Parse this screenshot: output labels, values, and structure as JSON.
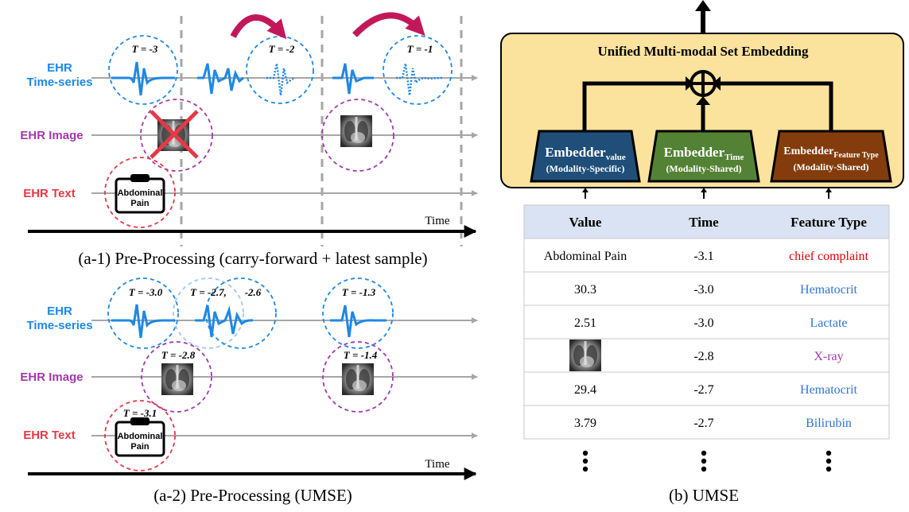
{
  "colors": {
    "timeseries": "#1e88e5",
    "image": "#a03aa8",
    "text": "#e53945",
    "axis": "#000000",
    "guide": "#a6a6a6",
    "carry_arrow": "#c2185b",
    "umse_box": "#fbe39e",
    "emb_value": "#1f4e79",
    "emb_time": "#548235",
    "emb_feature": "#843c0c",
    "table_header": "#dae3f3",
    "feature_red": "#e00000",
    "feature_blue": "#2e75d2",
    "feature_purple": "#a03aa8"
  },
  "icons": [
    "ecg-waveform-icon",
    "chest-xray-icon",
    "clipboard-icon",
    "cross-out-icon",
    "curved-arrow-icon",
    "circled-plus-icon",
    "up-arrow-icon",
    "vertical-ellipsis-icon"
  ],
  "panel_a1": {
    "row_labels": {
      "timeseries_line1": "EHR",
      "timeseries_line2": "Time-series",
      "image": "EHR Image",
      "text": "EHR Text"
    },
    "t_labels": [
      "T = -3",
      "T = -2",
      "T = -1"
    ],
    "clipboard_line1": "Abdominal",
    "clipboard_line2": "Pain",
    "time_label": "Time",
    "caption": "(a-1) Pre-Processing (carry-forward + latest sample)"
  },
  "panel_a2": {
    "row_labels": {
      "timeseries_line1": "EHR",
      "timeseries_line2": "Time-series",
      "image": "EHR Image",
      "text": "EHR Text"
    },
    "t_labels_ts": [
      "T = -3.0",
      "T = -2.7,",
      "-2.6",
      "T = -1.3"
    ],
    "t_labels_img": [
      "T = -2.8",
      "T = -1.4"
    ],
    "t_label_text": "T = -3.1",
    "clipboard_line1": "Abdominal",
    "clipboard_line2": "Pain",
    "time_label": "Time",
    "caption": "(a-2) Pre-Processing (UMSE)"
  },
  "panel_b": {
    "title": "Unified Multi-modal Set Embedding",
    "embedders": [
      {
        "main": "Embedder",
        "sub": "value",
        "note": "(Modality-Specific)"
      },
      {
        "main": "Embedder",
        "sub": "Time",
        "note": "(Modality-Shared)"
      },
      {
        "main": "Embedder",
        "sub": "Feature Type",
        "note": "(Modality-Shared)"
      }
    ],
    "table": {
      "headers": [
        "Value",
        "Time",
        "Feature Type"
      ],
      "rows": [
        {
          "value": "Abdominal Pain",
          "time": "-3.1",
          "feature": "chief complaint",
          "color": "#e00000"
        },
        {
          "value": "30.3",
          "time": "-3.0",
          "feature": "Hematocrit",
          "color": "#2e75d2"
        },
        {
          "value": "2.51",
          "time": "-3.0",
          "feature": "Lactate",
          "color": "#2e75d2"
        },
        {
          "value": "",
          "time": "-2.8",
          "feature": "X-ray",
          "color": "#a03aa8"
        },
        {
          "value": "29.4",
          "time": "-2.7",
          "feature": "Hematocrit",
          "color": "#2e75d2"
        },
        {
          "value": "3.79",
          "time": "-2.7",
          "feature": "Bilirubin",
          "color": "#2e75d2"
        }
      ]
    },
    "caption": "(b) UMSE"
  }
}
